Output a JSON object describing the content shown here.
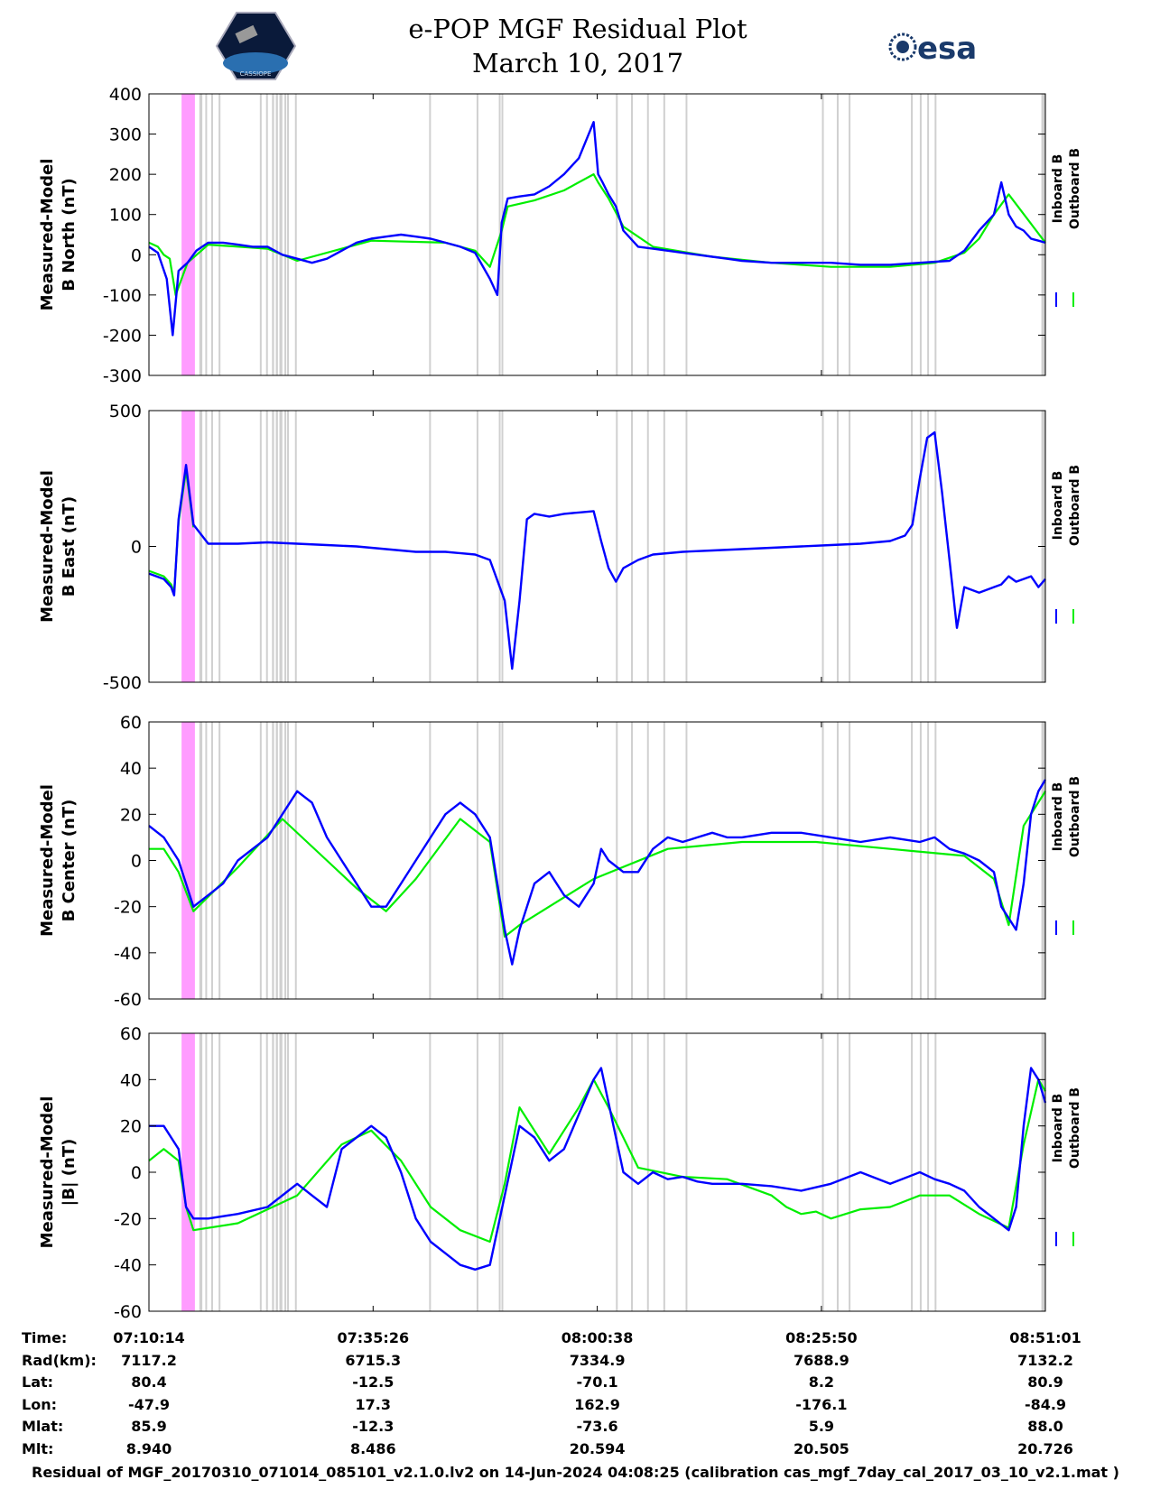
{
  "header": {
    "title_line1": "e-POP MGF Residual Plot",
    "title_line2": "March 10, 2017",
    "logo_left": "CASSIOPE",
    "logo_right": "esa"
  },
  "colors": {
    "inboard": "#0000ff",
    "outboard": "#00ee00",
    "gap": "#d0d0d0",
    "flag": "#ff9cff"
  },
  "chart_data": [
    {
      "type": "line",
      "ylabel": [
        "Measured-Model",
        "B North (nT)"
      ],
      "ylim": [
        -300,
        400
      ],
      "yticks": [
        400,
        300,
        200,
        100,
        0,
        -100,
        -200,
        -300
      ],
      "x_range_s": [
        0,
        6047
      ],
      "legend": [
        "Inboard B",
        "Outboard B"
      ],
      "series": [
        {
          "name": "Inboard B",
          "x": [
            0,
            60,
            120,
            160,
            200,
            260,
            320,
            400,
            500,
            600,
            700,
            800,
            900,
            1000,
            1100,
            1200,
            1300,
            1400,
            1500,
            1600,
            1700,
            1800,
            1900,
            2000,
            2100,
            2200,
            2300,
            2350,
            2380,
            2420,
            2500,
            2600,
            2700,
            2800,
            2900,
            3000,
            3030,
            3060,
            3100,
            3150,
            3200,
            3300,
            3400,
            3500,
            3600,
            3700,
            3800,
            3900,
            4000,
            4200,
            4400,
            4600,
            4800,
            5000,
            5200,
            5400,
            5500,
            5600,
            5700,
            5750,
            5800,
            5850,
            5900,
            5950,
            6000,
            6047
          ],
          "y": [
            20,
            5,
            -60,
            -200,
            -40,
            -20,
            10,
            30,
            30,
            25,
            20,
            20,
            0,
            -10,
            -20,
            -10,
            10,
            30,
            40,
            45,
            50,
            45,
            40,
            30,
            20,
            5,
            -60,
            -100,
            80,
            140,
            145,
            150,
            170,
            200,
            240,
            330,
            200,
            180,
            150,
            120,
            60,
            20,
            15,
            10,
            5,
            0,
            -5,
            -10,
            -15,
            -20,
            -20,
            -20,
            -25,
            -25,
            -20,
            -15,
            10,
            60,
            100,
            180,
            100,
            70,
            60,
            40,
            35,
            30
          ]
        },
        {
          "name": "Outboard B",
          "x": [
            0,
            60,
            100,
            140,
            180,
            260,
            400,
            800,
            1000,
            1500,
            2000,
            2200,
            2300,
            2380,
            2420,
            2600,
            2800,
            3000,
            3030,
            3100,
            3200,
            3400,
            3800,
            4200,
            4600,
            5000,
            5300,
            5500,
            5600,
            5700,
            5800,
            6047
          ],
          "y": [
            30,
            20,
            0,
            -10,
            -100,
            -20,
            25,
            15,
            -15,
            35,
            30,
            10,
            -30,
            60,
            120,
            135,
            160,
            200,
            180,
            140,
            70,
            20,
            -5,
            -20,
            -30,
            -30,
            -20,
            5,
            40,
            100,
            150,
            30
          ]
        }
      ]
    },
    {
      "type": "line",
      "ylabel": [
        "Measured-Model",
        "B East (nT)"
      ],
      "ylim": [
        -500,
        500
      ],
      "yticks": [
        500,
        0,
        -500
      ],
      "x_range_s": [
        0,
        6047
      ],
      "legend": [
        "Inboard B",
        "Outboard B"
      ],
      "series": [
        {
          "name": "Inboard B",
          "x": [
            0,
            100,
            150,
            170,
            200,
            250,
            300,
            400,
            600,
            800,
            1000,
            1200,
            1400,
            1600,
            1800,
            2000,
            2200,
            2300,
            2400,
            2450,
            2500,
            2550,
            2600,
            2700,
            2800,
            2900,
            3000,
            3050,
            3100,
            3150,
            3200,
            3300,
            3400,
            3600,
            3800,
            4000,
            4200,
            4400,
            4600,
            4800,
            5000,
            5100,
            5150,
            5200,
            5250,
            5300,
            5350,
            5400,
            5450,
            5500,
            5600,
            5700,
            5750,
            5800,
            5850,
            5900,
            5950,
            6000,
            6047
          ],
          "y": [
            -100,
            -120,
            -150,
            -180,
            100,
            300,
            80,
            10,
            10,
            15,
            10,
            5,
            0,
            -10,
            -20,
            -20,
            -30,
            -50,
            -200,
            -450,
            -200,
            100,
            120,
            110,
            120,
            125,
            130,
            20,
            -80,
            -130,
            -80,
            -50,
            -30,
            -20,
            -15,
            -10,
            -5,
            0,
            5,
            10,
            20,
            40,
            80,
            250,
            400,
            420,
            200,
            -50,
            -300,
            -150,
            -170,
            -150,
            -140,
            -110,
            -130,
            -120,
            -110,
            -150,
            -120
          ]
        },
        {
          "name": "Outboard B",
          "x": [
            0,
            100,
            150,
            170,
            200,
            250,
            300
          ],
          "y": [
            -90,
            -110,
            -140,
            -170,
            90,
            280,
            70
          ]
        }
      ]
    },
    {
      "type": "line",
      "ylabel": [
        "Measured-Model",
        "B Center (nT)"
      ],
      "ylim": [
        -60,
        60
      ],
      "yticks": [
        60,
        40,
        20,
        0,
        -20,
        -40,
        -60
      ],
      "x_range_s": [
        0,
        6047
      ],
      "legend": [
        "Inboard B",
        "Outboard B"
      ],
      "series": [
        {
          "name": "Inboard B",
          "x": [
            0,
            100,
            200,
            300,
            400,
            500,
            600,
            700,
            800,
            900,
            1000,
            1100,
            1200,
            1300,
            1400,
            1500,
            1600,
            1700,
            1800,
            1900,
            2000,
            2100,
            2200,
            2300,
            2400,
            2450,
            2500,
            2600,
            2700,
            2800,
            2900,
            3000,
            3050,
            3100,
            3200,
            3300,
            3400,
            3500,
            3600,
            3700,
            3800,
            3900,
            4000,
            4200,
            4400,
            4600,
            4800,
            5000,
            5200,
            5300,
            5400,
            5500,
            5600,
            5700,
            5750,
            5800,
            5850,
            5900,
            5950,
            6000,
            6047
          ],
          "y": [
            15,
            10,
            0,
            -20,
            -15,
            -10,
            0,
            5,
            10,
            20,
            30,
            25,
            10,
            0,
            -10,
            -20,
            -20,
            -10,
            0,
            10,
            20,
            25,
            20,
            10,
            -30,
            -45,
            -30,
            -10,
            -5,
            -15,
            -20,
            -10,
            5,
            0,
            -5,
            -5,
            5,
            10,
            8,
            10,
            12,
            10,
            10,
            12,
            12,
            10,
            8,
            10,
            8,
            10,
            5,
            3,
            0,
            -5,
            -20,
            -25,
            -30,
            -10,
            20,
            30,
            35
          ]
        },
        {
          "name": "Outboard B",
          "x": [
            0,
            100,
            200,
            300,
            600,
            900,
            1200,
            1400,
            1600,
            1800,
            2100,
            2300,
            2400,
            2500,
            3000,
            3500,
            4000,
            4500,
            5000,
            5500,
            5700,
            5800,
            5900,
            6047
          ],
          "y": [
            5,
            5,
            -5,
            -22,
            -3,
            18,
            0,
            -12,
            -22,
            -8,
            18,
            8,
            -33,
            -28,
            -8,
            5,
            8,
            8,
            5,
            2,
            -8,
            -28,
            15,
            30
          ]
        }
      ]
    },
    {
      "type": "line",
      "ylabel": [
        "Measured-Model",
        "|B| (nT)"
      ],
      "ylim": [
        -60,
        60
      ],
      "yticks": [
        60,
        40,
        20,
        0,
        -20,
        -40,
        -60
      ],
      "x_range_s": [
        0,
        6047
      ],
      "legend": [
        "Inboard B",
        "Outboard B"
      ],
      "series": [
        {
          "name": "Inboard B",
          "x": [
            0,
            100,
            200,
            250,
            300,
            400,
            600,
            800,
            1000,
            1100,
            1200,
            1300,
            1400,
            1500,
            1600,
            1700,
            1800,
            1900,
            2000,
            2100,
            2200,
            2300,
            2400,
            2500,
            2600,
            2700,
            2800,
            2900,
            3000,
            3050,
            3100,
            3200,
            3300,
            3400,
            3500,
            3600,
            3700,
            3800,
            3900,
            4000,
            4200,
            4400,
            4600,
            4800,
            5000,
            5200,
            5300,
            5400,
            5500,
            5600,
            5700,
            5800,
            5850,
            5900,
            5950,
            6000,
            6047
          ],
          "y": [
            20,
            20,
            10,
            -15,
            -20,
            -20,
            -18,
            -15,
            -5,
            -10,
            -15,
            10,
            15,
            20,
            15,
            0,
            -20,
            -30,
            -35,
            -40,
            -42,
            -40,
            -10,
            20,
            15,
            5,
            10,
            25,
            40,
            45,
            30,
            0,
            -5,
            0,
            -3,
            -2,
            -4,
            -5,
            -5,
            -5,
            -6,
            -8,
            -5,
            0,
            -5,
            0,
            -3,
            -5,
            -8,
            -15,
            -20,
            -25,
            -15,
            20,
            45,
            40,
            30
          ]
        },
        {
          "name": "Outboard B",
          "x": [
            0,
            100,
            200,
            250,
            300,
            600,
            1000,
            1300,
            1500,
            1700,
            1900,
            2100,
            2300,
            2400,
            2500,
            2700,
            2900,
            3000,
            3100,
            3300,
            3600,
            3900,
            4200,
            4300,
            4400,
            4500,
            4600,
            4800,
            5000,
            5200,
            5400,
            5600,
            5800,
            5900,
            6000,
            6047
          ],
          "y": [
            5,
            10,
            5,
            -15,
            -25,
            -22,
            -10,
            12,
            18,
            5,
            -15,
            -25,
            -30,
            -5,
            28,
            8,
            28,
            40,
            28,
            2,
            -2,
            -3,
            -10,
            -15,
            -18,
            -17,
            -20,
            -16,
            -15,
            -10,
            -10,
            -18,
            -24,
            12,
            40,
            35
          ]
        }
      ]
    }
  ],
  "gap_bands_s": [
    [
      280,
      300
    ],
    [
      340,
      360
    ],
    [
      380,
      392
    ],
    [
      420,
      432
    ],
    [
      470,
      482
    ],
    [
      748,
      756
    ],
    [
      790,
      800
    ],
    [
      830,
      844
    ],
    [
      856,
      870
    ],
    [
      880,
      900
    ],
    [
      914,
      926
    ],
    [
      932,
      940
    ],
    [
      985,
      995
    ],
    [
      1890,
      1902
    ],
    [
      2210,
      2218
    ],
    [
      2360,
      2370
    ],
    [
      2378,
      2390
    ],
    [
      3150,
      3158
    ],
    [
      3252,
      3260
    ],
    [
      3360,
      3368
    ],
    [
      3470,
      3480
    ],
    [
      3620,
      3628
    ],
    [
      4540,
      4548
    ],
    [
      4640,
      4648
    ],
    [
      4720,
      4728
    ],
    [
      5140,
      5148
    ],
    [
      5200,
      5208
    ],
    [
      5250,
      5258
    ],
    [
      5300,
      5308
    ],
    [
      6020,
      6047
    ]
  ],
  "flag_bands_s": [
    [
      220,
      310
    ]
  ],
  "time_table": {
    "row_labels": [
      "Time:",
      "Rad(km):",
      "Lat:",
      "Lon:",
      "Mlat:",
      "Mlt:"
    ],
    "columns": [
      [
        "07:10:14",
        "7117.2",
        "80.4",
        "-47.9",
        "85.9",
        "8.940"
      ],
      [
        "07:35:26",
        "6715.3",
        "-12.5",
        "17.3",
        "-12.3",
        "8.486"
      ],
      [
        "08:00:38",
        "7334.9",
        "-70.1",
        "162.9",
        "-73.6",
        "20.594"
      ],
      [
        "08:25:50",
        "7688.9",
        "8.2",
        "-176.1",
        "5.9",
        "20.505"
      ],
      [
        "08:51:01",
        "7132.2",
        "80.9",
        "-84.9",
        "88.0",
        "20.726"
      ]
    ]
  },
  "footer": "Residual of MGF_20170310_071014_085101_v2.1.0.lv2 on 14-Jun-2024 04:08:25 (calibration cas_mgf_7day_cal_2017_03_10_v2.1.mat )"
}
